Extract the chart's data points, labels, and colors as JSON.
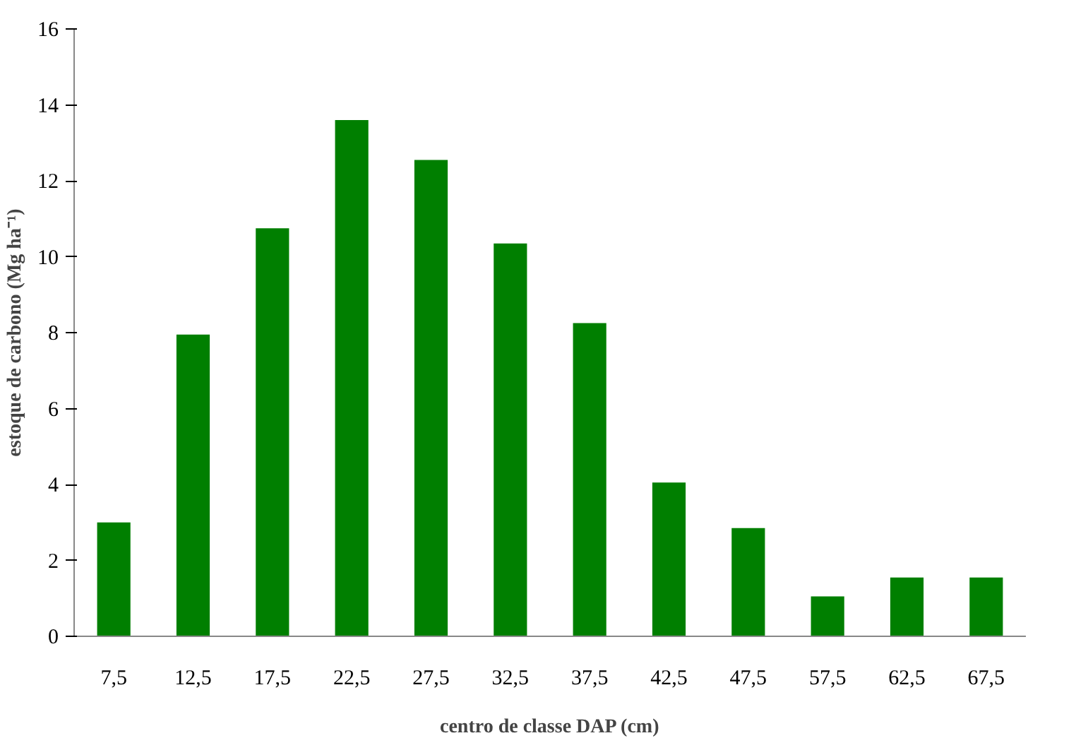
{
  "chart_data": {
    "type": "bar",
    "xlabel": "centro de classe DAP (cm)",
    "ylabel": "estoque de carbono (Mg ha⁻¹)",
    "categories": [
      "7,5",
      "12,5",
      "17,5",
      "22,5",
      "27,5",
      "32,5",
      "37,5",
      "42,5",
      "47,5",
      "57,5",
      "62,5",
      "67,5"
    ],
    "values": [
      3.0,
      7.95,
      10.75,
      13.6,
      12.55,
      10.35,
      8.25,
      4.05,
      2.85,
      1.05,
      1.55,
      1.55
    ],
    "color": "#007f00",
    "ylim": [
      0,
      16
    ],
    "yticks": [
      0,
      2,
      4,
      6,
      8,
      10,
      12,
      14,
      16
    ],
    "grid": false
  }
}
